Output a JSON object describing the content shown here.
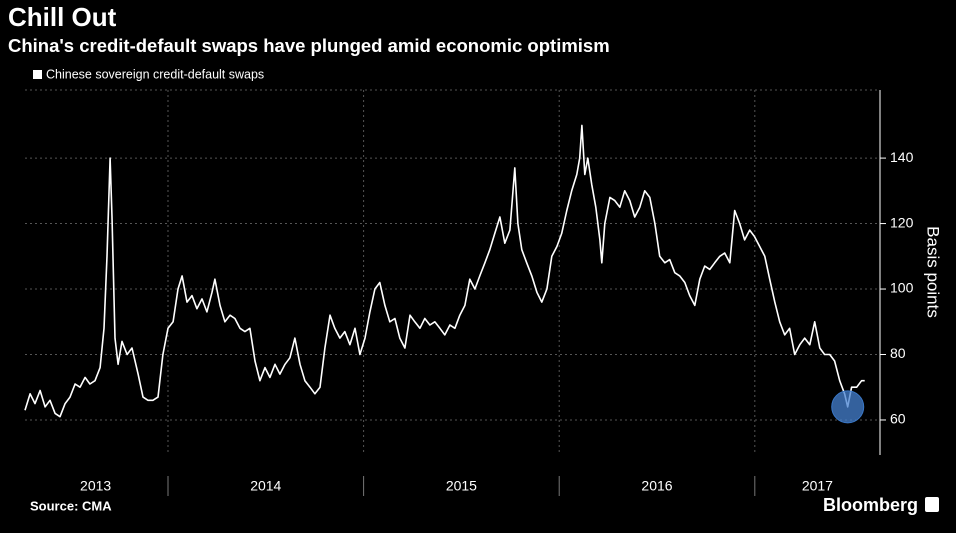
{
  "chart_data": {
    "type": "line",
    "title": "Chill Out",
    "subtitle": "China's credit-default swaps have plunged amid economic optimism",
    "y_label": "Basis points",
    "source": "Source: CMA",
    "brand": "Bloomberg",
    "ylim": [
      49.3,
      160.8
    ],
    "yticks": [
      60,
      80,
      100,
      120,
      140
    ],
    "xlim": [
      2013.269,
      2017.64
    ],
    "xticks": [
      {
        "value": 2013.63,
        "label": "2013"
      },
      {
        "value": 2014.5,
        "label": "2014"
      },
      {
        "value": 2015.5,
        "label": "2015"
      },
      {
        "value": 2016.5,
        "label": "2016"
      },
      {
        "value": 2017.32,
        "label": "2017"
      }
    ],
    "x_separators": [
      2014,
      2015,
      2016,
      2017
    ],
    "grid": true,
    "x": [
      2013.269,
      2013.295,
      2013.32,
      2013.346,
      2013.372,
      2013.397,
      2013.423,
      2013.448,
      2013.474,
      2013.499,
      2013.525,
      2013.55,
      2013.576,
      2013.601,
      2013.627,
      2013.653,
      2013.673,
      2013.688,
      2013.704,
      2013.714,
      2013.729,
      2013.745,
      2013.765,
      2013.791,
      2013.816,
      2013.847,
      2013.872,
      2013.898,
      2013.923,
      2013.949,
      2013.974,
      2014.0,
      2014.026,
      2014.051,
      2014.072,
      2014.097,
      2014.123,
      2014.148,
      2014.174,
      2014.199,
      2014.225,
      2014.24,
      2014.266,
      2014.291,
      2014.317,
      2014.342,
      2014.368,
      2014.393,
      2014.419,
      2014.445,
      2014.47,
      2014.496,
      2014.521,
      2014.547,
      2014.572,
      2014.598,
      2014.623,
      2014.649,
      2014.675,
      2014.7,
      2014.726,
      2014.751,
      2014.777,
      2014.802,
      2014.828,
      2014.853,
      2014.879,
      2014.904,
      2014.93,
      2014.956,
      2014.981,
      2015.007,
      2015.032,
      2015.058,
      2015.083,
      2015.109,
      2015.134,
      2015.16,
      2015.185,
      2015.211,
      2015.237,
      2015.262,
      2015.288,
      2015.313,
      2015.339,
      2015.364,
      2015.39,
      2015.415,
      2015.441,
      2015.467,
      2015.492,
      2015.518,
      2015.543,
      2015.569,
      2015.594,
      2015.62,
      2015.645,
      2015.671,
      2015.697,
      2015.722,
      2015.748,
      2015.773,
      2015.789,
      2015.809,
      2015.834,
      2015.86,
      2015.886,
      2015.911,
      2015.937,
      2015.962,
      2015.988,
      2016.013,
      2016.039,
      2016.064,
      2016.09,
      2016.105,
      2016.116,
      2016.131,
      2016.146,
      2016.166,
      2016.187,
      2016.208,
      2016.218,
      2016.233,
      2016.259,
      2016.284,
      2016.31,
      2016.335,
      2016.361,
      2016.386,
      2016.412,
      2016.437,
      2016.463,
      2016.489,
      2016.514,
      2016.54,
      2016.565,
      2016.591,
      2016.616,
      2016.642,
      2016.667,
      2016.693,
      2016.719,
      2016.744,
      2016.77,
      2016.795,
      2016.821,
      2016.846,
      2016.872,
      2016.897,
      2016.923,
      2016.948,
      2016.974,
      2016.999,
      2017.025,
      2017.051,
      2017.076,
      2017.102,
      2017.127,
      2017.153,
      2017.178,
      2017.204,
      2017.23,
      2017.255,
      2017.281,
      2017.306,
      2017.332,
      2017.357,
      2017.383,
      2017.408,
      2017.434,
      2017.459,
      2017.475,
      2017.495,
      2017.521,
      2017.546,
      2017.562
    ],
    "series": [
      {
        "name": "Chinese sovereign credit-default swaps",
        "color": "#ffffff",
        "values": [
          63,
          68,
          65,
          69,
          64,
          66,
          62,
          61,
          65,
          67,
          71,
          70,
          73,
          71,
          72,
          76,
          88,
          110,
          140,
          122,
          85,
          77,
          84,
          80,
          82,
          74,
          67,
          66,
          66,
          67,
          80,
          88,
          90,
          100,
          104,
          96,
          98,
          94,
          97,
          93,
          99,
          103,
          95,
          90,
          92,
          91,
          88,
          87,
          88,
          78,
          72,
          76,
          73,
          77,
          74,
          77,
          79,
          85,
          77,
          72,
          70,
          68,
          70,
          82,
          92,
          88,
          85,
          87,
          83,
          88,
          80,
          85,
          93,
          100,
          102,
          95,
          90,
          91,
          85,
          82,
          92,
          90,
          88,
          91,
          89,
          90,
          88,
          86,
          89,
          88,
          92,
          95,
          103,
          100,
          104,
          108,
          112,
          117,
          122,
          114,
          118,
          137,
          120,
          112,
          108,
          104,
          99,
          96,
          100,
          110,
          113,
          117,
          124,
          130,
          135,
          140,
          150,
          135,
          140,
          132,
          125,
          115,
          108,
          120,
          128,
          127,
          125,
          130,
          127,
          122,
          125,
          130,
          128,
          120,
          110,
          108,
          109,
          105,
          104,
          102,
          98,
          95,
          103,
          107,
          106,
          108,
          110,
          111,
          108,
          124,
          120,
          115,
          118,
          116,
          113,
          110,
          103,
          96,
          90,
          86,
          88,
          80,
          83,
          85,
          83,
          90,
          82,
          80,
          80,
          78,
          72,
          68,
          64,
          70,
          70,
          72,
          72
        ]
      }
    ]
  }
}
